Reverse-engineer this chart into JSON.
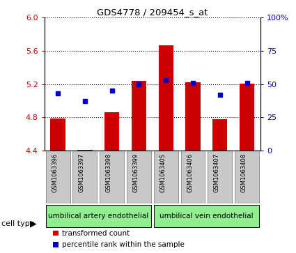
{
  "title": "GDS4778 / 209454_s_at",
  "samples": [
    "GSM1063396",
    "GSM1063397",
    "GSM1063398",
    "GSM1063399",
    "GSM1063405",
    "GSM1063406",
    "GSM1063407",
    "GSM1063408"
  ],
  "transformed_counts": [
    4.79,
    4.41,
    4.86,
    5.24,
    5.67,
    5.22,
    4.78,
    5.21
  ],
  "percentile_ranks": [
    43,
    37,
    45,
    50,
    53,
    51,
    42,
    51
  ],
  "ylim": [
    4.4,
    6.0
  ],
  "yticks": [
    4.4,
    4.8,
    5.2,
    5.6,
    6.0
  ],
  "y2lim": [
    0,
    100
  ],
  "y2ticks": [
    0,
    25,
    50,
    75,
    100
  ],
  "y2ticklabels": [
    "0",
    "25",
    "50",
    "75",
    "100%"
  ],
  "bar_color": "#cc0000",
  "dot_color": "#0000cc",
  "bar_bottom": 4.4,
  "cell_type_groups": [
    {
      "label": "umbilical artery endothelial",
      "n_samples": 4,
      "color": "#90ee90"
    },
    {
      "label": "umbilical vein endothelial",
      "n_samples": 4,
      "color": "#90ee90"
    }
  ],
  "cell_type_label": "cell type",
  "legend_items": [
    {
      "label": "transformed count",
      "color": "#cc0000"
    },
    {
      "label": "percentile rank within the sample",
      "color": "#0000cc"
    }
  ],
  "tick_color_left": "#cc0000",
  "tick_color_right": "#0000cc",
  "sample_box_color": "#c8c8c8",
  "sample_box_edge": "#888888"
}
